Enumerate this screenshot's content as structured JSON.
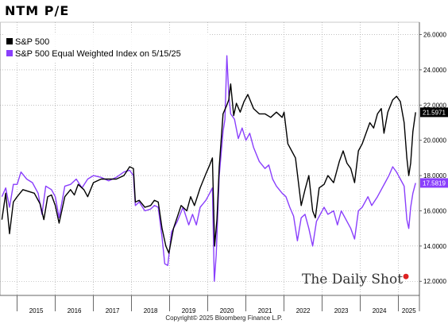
{
  "title": "NTM P/E",
  "watermark": "The Daily Shot",
  "copyright": "Copyright© 2025 Bloomberg Finance L.P.",
  "chart_data": {
    "type": "line",
    "title": "NTM P/E",
    "xlim": [
      2014.55,
      2025.55
    ],
    "ylim": [
      11.2,
      26.7
    ],
    "y_ticks": [
      "12.0000",
      "14.0000",
      "16.0000",
      "18.0000",
      "20.0000",
      "22.0000",
      "24.0000",
      "26.0000"
    ],
    "x_ticks": [
      "2015",
      "2016",
      "2017",
      "2018",
      "2019",
      "2020",
      "2021",
      "2022",
      "2023",
      "2024",
      "2025"
    ],
    "legend_placement": "top-left",
    "grid": "dotted",
    "series": [
      {
        "name": "S&P 500",
        "color": "#000000",
        "last_value_label": "21.5971",
        "points": [
          [
            2014.6,
            15.5
          ],
          [
            2014.7,
            17.0
          ],
          [
            2014.8,
            14.7
          ],
          [
            2014.9,
            16.5
          ],
          [
            2015.0,
            16.8
          ],
          [
            2015.15,
            17.2
          ],
          [
            2015.3,
            17.1
          ],
          [
            2015.45,
            17.0
          ],
          [
            2015.6,
            16.4
          ],
          [
            2015.7,
            15.5
          ],
          [
            2015.8,
            16.8
          ],
          [
            2015.9,
            16.9
          ],
          [
            2016.0,
            16.3
          ],
          [
            2016.1,
            15.3
          ],
          [
            2016.25,
            16.8
          ],
          [
            2016.4,
            17.2
          ],
          [
            2016.5,
            16.9
          ],
          [
            2016.6,
            17.5
          ],
          [
            2016.75,
            17.2
          ],
          [
            2016.85,
            16.8
          ],
          [
            2017.0,
            17.6
          ],
          [
            2017.2,
            17.8
          ],
          [
            2017.4,
            17.8
          ],
          [
            2017.6,
            17.8
          ],
          [
            2017.8,
            18.0
          ],
          [
            2017.95,
            18.5
          ],
          [
            2018.05,
            18.4
          ],
          [
            2018.1,
            16.5
          ],
          [
            2018.2,
            16.6
          ],
          [
            2018.35,
            16.2
          ],
          [
            2018.5,
            16.3
          ],
          [
            2018.6,
            16.6
          ],
          [
            2018.7,
            16.5
          ],
          [
            2018.8,
            15.0
          ],
          [
            2018.9,
            14.0
          ],
          [
            2018.98,
            13.6
          ],
          [
            2019.1,
            15.0
          ],
          [
            2019.3,
            16.3
          ],
          [
            2019.45,
            16.0
          ],
          [
            2019.55,
            16.8
          ],
          [
            2019.65,
            16.3
          ],
          [
            2019.8,
            17.3
          ],
          [
            2019.95,
            18.1
          ],
          [
            2020.05,
            18.6
          ],
          [
            2020.12,
            19.0
          ],
          [
            2020.18,
            14.0
          ],
          [
            2020.24,
            15.5
          ],
          [
            2020.3,
            18.5
          ],
          [
            2020.4,
            21.5
          ],
          [
            2020.5,
            22.0
          ],
          [
            2020.55,
            22.3
          ],
          [
            2020.6,
            23.2
          ],
          [
            2020.68,
            21.4
          ],
          [
            2020.75,
            22.1
          ],
          [
            2020.85,
            21.6
          ],
          [
            2020.95,
            22.2
          ],
          [
            2021.05,
            22.6
          ],
          [
            2021.2,
            21.8
          ],
          [
            2021.35,
            21.5
          ],
          [
            2021.5,
            21.5
          ],
          [
            2021.65,
            21.3
          ],
          [
            2021.8,
            21.6
          ],
          [
            2021.95,
            21.3
          ],
          [
            2022.0,
            21.6
          ],
          [
            2022.1,
            19.8
          ],
          [
            2022.2,
            19.4
          ],
          [
            2022.3,
            19.0
          ],
          [
            2022.45,
            16.3
          ],
          [
            2022.55,
            17.2
          ],
          [
            2022.65,
            18.0
          ],
          [
            2022.75,
            16.0
          ],
          [
            2022.82,
            15.6
          ],
          [
            2022.92,
            17.3
          ],
          [
            2023.05,
            17.5
          ],
          [
            2023.15,
            18.0
          ],
          [
            2023.3,
            17.6
          ],
          [
            2023.45,
            18.8
          ],
          [
            2023.55,
            19.4
          ],
          [
            2023.65,
            18.7
          ],
          [
            2023.75,
            18.4
          ],
          [
            2023.85,
            17.6
          ],
          [
            2023.95,
            19.4
          ],
          [
            2024.05,
            19.8
          ],
          [
            2024.15,
            20.4
          ],
          [
            2024.25,
            21.0
          ],
          [
            2024.35,
            20.7
          ],
          [
            2024.45,
            21.5
          ],
          [
            2024.55,
            21.8
          ],
          [
            2024.62,
            20.4
          ],
          [
            2024.72,
            21.6
          ],
          [
            2024.85,
            22.3
          ],
          [
            2024.95,
            22.5
          ],
          [
            2025.05,
            22.2
          ],
          [
            2025.15,
            21.0
          ],
          [
            2025.22,
            19.0
          ],
          [
            2025.27,
            18.0
          ],
          [
            2025.32,
            18.7
          ],
          [
            2025.38,
            20.5
          ],
          [
            2025.45,
            21.59
          ]
        ]
      },
      {
        "name": "S&P 500 Equal Weighted Index on 5/15/25",
        "color": "#8a3ffc",
        "last_value_label": "17.5819",
        "points": [
          [
            2014.6,
            16.8
          ],
          [
            2014.7,
            17.3
          ],
          [
            2014.8,
            16.2
          ],
          [
            2014.9,
            17.5
          ],
          [
            2015.0,
            17.5
          ],
          [
            2015.1,
            18.2
          ],
          [
            2015.25,
            17.8
          ],
          [
            2015.4,
            17.6
          ],
          [
            2015.55,
            17.0
          ],
          [
            2015.65,
            15.8
          ],
          [
            2015.75,
            17.4
          ],
          [
            2015.9,
            17.2
          ],
          [
            2016.0,
            16.8
          ],
          [
            2016.1,
            15.6
          ],
          [
            2016.25,
            17.4
          ],
          [
            2016.4,
            17.5
          ],
          [
            2016.55,
            17.8
          ],
          [
            2016.7,
            17.3
          ],
          [
            2016.85,
            17.8
          ],
          [
            2017.0,
            18.0
          ],
          [
            2017.2,
            17.9
          ],
          [
            2017.4,
            17.7
          ],
          [
            2017.6,
            17.9
          ],
          [
            2017.8,
            18.2
          ],
          [
            2017.95,
            18.3
          ],
          [
            2018.05,
            18.0
          ],
          [
            2018.1,
            16.3
          ],
          [
            2018.2,
            16.5
          ],
          [
            2018.35,
            16.0
          ],
          [
            2018.5,
            16.1
          ],
          [
            2018.6,
            16.3
          ],
          [
            2018.7,
            16.2
          ],
          [
            2018.8,
            14.5
          ],
          [
            2018.87,
            13.0
          ],
          [
            2018.95,
            12.9
          ],
          [
            2019.05,
            14.8
          ],
          [
            2019.2,
            15.4
          ],
          [
            2019.35,
            16.2
          ],
          [
            2019.5,
            15.2
          ],
          [
            2019.6,
            15.8
          ],
          [
            2019.7,
            15.2
          ],
          [
            2019.8,
            16.2
          ],
          [
            2019.95,
            16.6
          ],
          [
            2020.05,
            17.0
          ],
          [
            2020.12,
            17.3
          ],
          [
            2020.17,
            12.0
          ],
          [
            2020.22,
            13.5
          ],
          [
            2020.3,
            18.0
          ],
          [
            2020.4,
            20.5
          ],
          [
            2020.45,
            21.2
          ],
          [
            2020.5,
            24.8
          ],
          [
            2020.55,
            22.6
          ],
          [
            2020.6,
            21.5
          ],
          [
            2020.7,
            21.2
          ],
          [
            2020.8,
            20.1
          ],
          [
            2020.9,
            20.7
          ],
          [
            2021.0,
            20.0
          ],
          [
            2021.1,
            20.4
          ],
          [
            2021.2,
            19.6
          ],
          [
            2021.35,
            18.8
          ],
          [
            2021.5,
            18.4
          ],
          [
            2021.6,
            18.6
          ],
          [
            2021.7,
            17.8
          ],
          [
            2021.8,
            17.4
          ],
          [
            2021.95,
            17.0
          ],
          [
            2022.05,
            16.8
          ],
          [
            2022.15,
            16.2
          ],
          [
            2022.25,
            15.7
          ],
          [
            2022.35,
            14.3
          ],
          [
            2022.45,
            15.6
          ],
          [
            2022.55,
            15.8
          ],
          [
            2022.65,
            15.0
          ],
          [
            2022.75,
            14.0
          ],
          [
            2022.85,
            15.4
          ],
          [
            2022.95,
            15.8
          ],
          [
            2023.05,
            16.2
          ],
          [
            2023.15,
            15.8
          ],
          [
            2023.3,
            16.0
          ],
          [
            2023.4,
            15.2
          ],
          [
            2023.5,
            16.0
          ],
          [
            2023.6,
            15.6
          ],
          [
            2023.75,
            15.0
          ],
          [
            2023.85,
            14.4
          ],
          [
            2023.95,
            16.0
          ],
          [
            2024.05,
            16.2
          ],
          [
            2024.2,
            16.8
          ],
          [
            2024.3,
            16.3
          ],
          [
            2024.45,
            16.8
          ],
          [
            2024.55,
            17.2
          ],
          [
            2024.65,
            17.6
          ],
          [
            2024.75,
            18.0
          ],
          [
            2024.85,
            18.5
          ],
          [
            2024.95,
            18.2
          ],
          [
            2025.05,
            17.8
          ],
          [
            2025.15,
            17.4
          ],
          [
            2025.22,
            15.5
          ],
          [
            2025.27,
            15.0
          ],
          [
            2025.32,
            16.2
          ],
          [
            2025.38,
            17.0
          ],
          [
            2025.45,
            17.58
          ]
        ]
      }
    ]
  }
}
